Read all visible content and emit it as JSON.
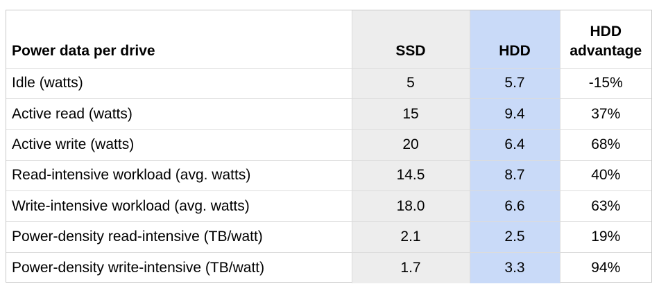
{
  "table": {
    "headers": {
      "label": "Power data per drive",
      "ssd": "SSD",
      "hdd": "HDD",
      "advantage": "HDD advantage"
    },
    "rows": [
      {
        "label": "Idle (watts)",
        "ssd": "5",
        "hdd": "5.7",
        "advantage": "-15%"
      },
      {
        "label": "Active read (watts)",
        "ssd": "15",
        "hdd": "9.4",
        "advantage": "37%"
      },
      {
        "label": "Active write (watts)",
        "ssd": "20",
        "hdd": "6.4",
        "advantage": "68%"
      },
      {
        "label": "Read-intensive workload (avg. watts)",
        "ssd": "14.5",
        "hdd": "8.7",
        "advantage": "40%"
      },
      {
        "label": "Write-intensive workload (avg. watts)",
        "ssd": "18.0",
        "hdd": "6.6",
        "advantage": "63%"
      },
      {
        "label": "Power-density read-intensive (TB/watt)",
        "ssd": "2.1",
        "hdd": "2.5",
        "advantage": "19%"
      },
      {
        "label": "Power-density write-intensive (TB/watt)",
        "ssd": "1.7",
        "hdd": "3.3",
        "advantage": "94%"
      }
    ],
    "colors": {
      "ssd_column": "#ededed",
      "hdd_column": "#c9daf8",
      "grid": "#dcdcdc"
    }
  }
}
